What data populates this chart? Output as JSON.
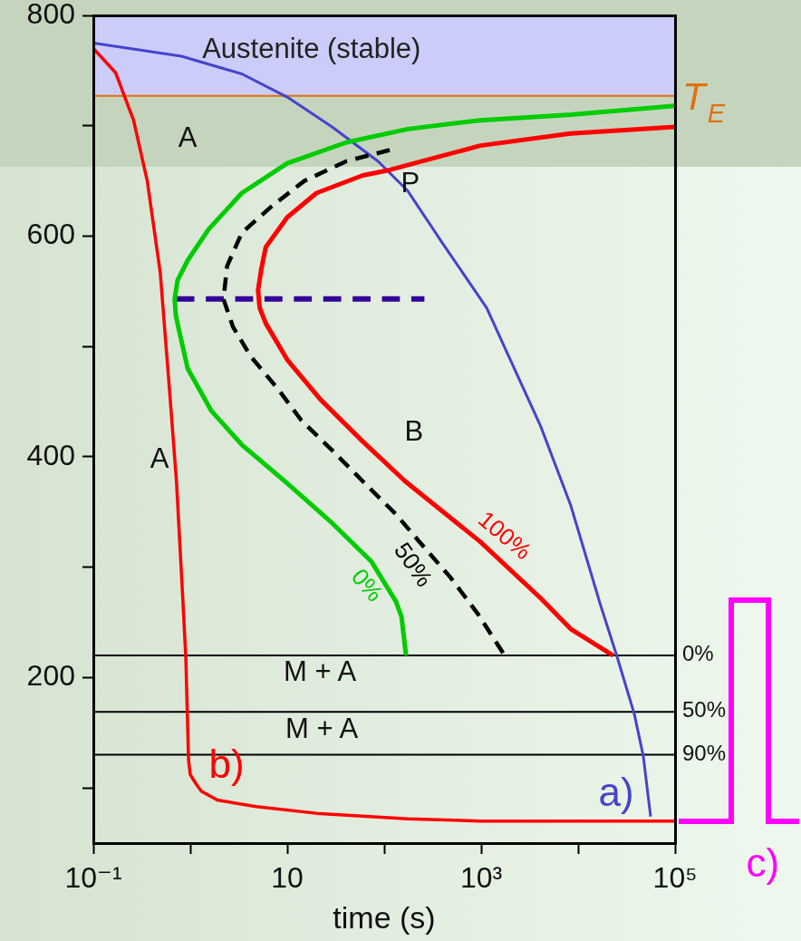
{
  "chart_data": {
    "type": "line",
    "xlabel": "time (s)",
    "series": [
      {
        "name": "0%",
        "color": "#00cc00",
        "x": [
          100000,
          8400,
          980,
          175,
          41,
          10,
          3.4,
          1.54,
          0.94,
          0.74,
          0.69,
          0.71,
          0.76,
          0.94,
          1.64,
          3.4,
          10,
          29,
          74,
          132,
          151,
          168
        ],
        "values": [
          718,
          710,
          705,
          697,
          685,
          666,
          639,
          606,
          578,
          560,
          543,
          528,
          516,
          480,
          442,
          411,
          376,
          340,
          305,
          269,
          255,
          220
        ]
      },
      {
        "name": "50%",
        "color": "#000000",
        "line_style": "dashed",
        "x": [
          114,
          41,
          15,
          6.9,
          3.4,
          2.4,
          2.2,
          2.75,
          4.2,
          8.1,
          14,
          29,
          60,
          132,
          231,
          480,
          920,
          1750
        ],
        "values": [
          678,
          668,
          650,
          627,
          603,
          573,
          543,
          518,
          491,
          461,
          433,
          406,
          378,
          348,
          323,
          291,
          258,
          220
        ]
      },
      {
        "name": "100%",
        "color": "#ff0000",
        "x": [
          100000,
          8400,
          980,
          114,
          60,
          20,
          10,
          6,
          5.4,
          5,
          5.2,
          6,
          10,
          22,
          60,
          164,
          980,
          4100,
          8400,
          23000
        ],
        "values": [
          699,
          693,
          682,
          660,
          655,
          639,
          617,
          590,
          570,
          551,
          535,
          521,
          488,
          452,
          414,
          378,
          323,
          272,
          244,
          220
        ]
      },
      {
        "color": "#330099",
        "line_style": "dashed",
        "x": [
          0.72,
          260
        ],
        "values": [
          543,
          543
        ]
      },
      {
        "name": "a)",
        "color": "#4444cc",
        "x": [
          0.1,
          0.81,
          3.4,
          10,
          29,
          86,
          175,
          390,
          1140,
          2000,
          4100,
          8400,
          17000,
          25000,
          38000,
          47000,
          56000
        ],
        "values": [
          775,
          763,
          747,
          726,
          699,
          668,
          641,
          595,
          535,
          488,
          428,
          356,
          266,
          220,
          167,
          129,
          74
        ]
      },
      {
        "name": "b)",
        "color": "#ff0000",
        "x": [
          0.1,
          0.17,
          0.26,
          0.36,
          0.49,
          0.61,
          0.72,
          0.84,
          0.9,
          0.96,
          1,
          1.16,
          1.3,
          1.9,
          4.8,
          20,
          175,
          980,
          100000
        ],
        "values": [
          770,
          748,
          705,
          650,
          567,
          461,
          378,
          269,
          217,
          125,
          112,
          103,
          97,
          89,
          83,
          77,
          72,
          70,
          70
        ]
      }
    ],
    "xlim": [
      0.1,
      100000
    ],
    "ylim": [
      50,
      800
    ],
    "xticks": [
      {
        "value": 0.1,
        "label": "10⁻¹"
      },
      {
        "value": 1,
        "label": null
      },
      10,
      {
        "value": 100,
        "label": null
      },
      {
        "value": 1000,
        "label": "10³"
      },
      {
        "value": 10000,
        "label": null
      },
      {
        "value": 100000,
        "label": "10⁵"
      }
    ],
    "yticks": [
      {
        "value": 100,
        "label": null
      },
      200,
      {
        "value": 300,
        "label": null
      },
      400,
      {
        "value": 500,
        "label": null
      },
      600,
      {
        "value": 700,
        "label": null
      },
      800
    ],
    "log": "x",
    "marker": "none",
    "bands": [
      {
        "axis": "y",
        "from": 727,
        "to": 800,
        "label": "Austenite (stable)",
        "color": "#ccccfa"
      }
    ],
    "ref_lines": [
      {
        "axis": "y",
        "value": 727,
        "label": "T$_{E}$",
        "color": "#e07010"
      },
      {
        "axis": "y",
        "value": 220
      },
      {
        "axis": "y",
        "value": 169
      },
      {
        "axis": "y",
        "value": 130
      }
    ],
    "annotations": [
      "0%",
      "50%",
      "90%",
      "A",
      "A",
      "P",
      "B",
      "M + A",
      "M + A",
      "c)"
    ]
  }
}
